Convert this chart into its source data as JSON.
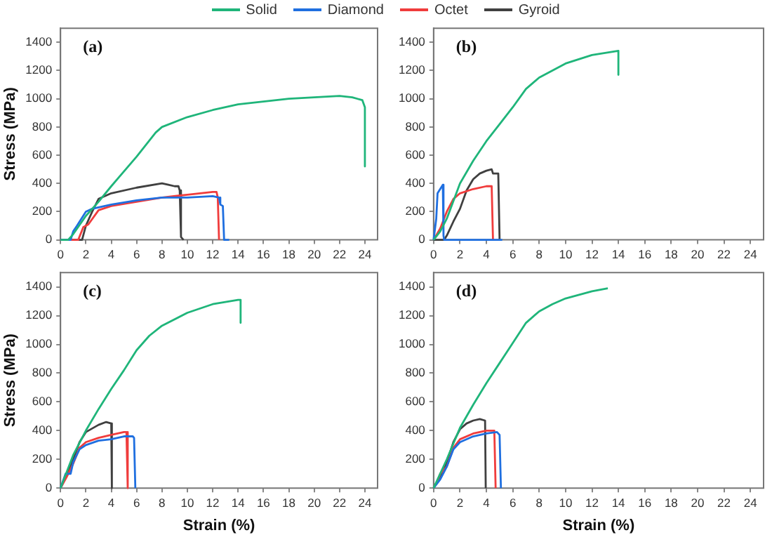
{
  "chart_data": [
    {
      "type": "line",
      "annotations": [
        "(a)"
      ],
      "ylabel": "Stress (MPa)",
      "legend": "top",
      "xlim": [
        0,
        25
      ],
      "ylim": [
        0,
        1500
      ],
      "xticks": [
        0,
        2,
        4,
        6,
        8,
        10,
        12,
        14,
        16,
        18,
        20,
        22,
        24
      ],
      "yticks": [
        0,
        200,
        400,
        600,
        800,
        1000,
        1200,
        1400
      ],
      "series": [
        {
          "name": "Solid",
          "color": "#1fb57a",
          "x": [
            0,
            0.6,
            1,
            2,
            3,
            4,
            6,
            7.5,
            8,
            10,
            12,
            14,
            16,
            18,
            20,
            22,
            23,
            23.8,
            24,
            24
          ],
          "values": [
            0,
            0,
            40,
            170,
            270,
            380,
            590,
            760,
            800,
            870,
            920,
            960,
            980,
            1000,
            1010,
            1020,
            1010,
            990,
            940,
            520
          ]
        },
        {
          "name": "Diamond",
          "color": "#1f6fe0",
          "x": [
            0,
            0.8,
            1,
            1.3,
            2,
            2.5,
            4,
            6,
            8,
            10,
            12,
            12.5,
            12.6,
            12.8,
            12.9,
            13.3
          ],
          "values": [
            0,
            0,
            60,
            100,
            200,
            220,
            250,
            280,
            300,
            300,
            310,
            300,
            250,
            240,
            0,
            0
          ]
        },
        {
          "name": "Octet",
          "color": "#f03c3c",
          "x": [
            0,
            1.4,
            1.8,
            2.2,
            3,
            4,
            6,
            8,
            10,
            12,
            12.3,
            12.4,
            12.5
          ],
          "values": [
            0,
            0,
            90,
            110,
            210,
            240,
            270,
            300,
            320,
            340,
            340,
            300,
            0
          ]
        },
        {
          "name": "Gyroid",
          "color": "#404040",
          "x": [
            0,
            1.7,
            2,
            2.5,
            3,
            4,
            6,
            8,
            8.5,
            9,
            9.3,
            9.4,
            9.5,
            9.7
          ],
          "values": [
            0,
            0,
            100,
            200,
            290,
            330,
            370,
            400,
            390,
            380,
            380,
            350,
            20,
            0
          ]
        }
      ]
    },
    {
      "type": "line",
      "annotations": [
        "(b)"
      ],
      "xlim": [
        0,
        25
      ],
      "ylim": [
        0,
        1500
      ],
      "xticks": [
        0,
        2,
        4,
        6,
        8,
        10,
        12,
        14,
        16,
        18,
        20,
        22,
        24
      ],
      "yticks": [
        0,
        200,
        400,
        600,
        800,
        1000,
        1200,
        1400
      ],
      "series": [
        {
          "color": "#1fb57a",
          "x": [
            0,
            0.5,
            1,
            2,
            3,
            4,
            5,
            6,
            7,
            8,
            10,
            12,
            14,
            14
          ],
          "values": [
            0,
            60,
            150,
            400,
            560,
            700,
            820,
            940,
            1070,
            1150,
            1250,
            1310,
            1340,
            1170
          ]
        },
        {
          "color": "#1f6fe0",
          "x": [
            0,
            0.2,
            0.3,
            0.5,
            0.7,
            0.75,
            0.8,
            5.2
          ],
          "values": [
            0,
            150,
            330,
            360,
            390,
            30,
            0,
            0
          ]
        },
        {
          "color": "#f03c3c",
          "x": [
            0,
            0.5,
            1,
            1.5,
            2,
            3,
            4,
            4.4,
            4.5
          ],
          "values": [
            0,
            80,
            200,
            290,
            330,
            360,
            380,
            380,
            0
          ]
        },
        {
          "color": "#404040",
          "x": [
            0,
            0.8,
            1,
            1.5,
            2,
            2.5,
            3,
            3.5,
            4,
            4.4,
            4.5,
            4.9,
            5
          ],
          "values": [
            0,
            0,
            30,
            130,
            220,
            350,
            430,
            470,
            490,
            500,
            470,
            470,
            0
          ]
        }
      ]
    },
    {
      "type": "line",
      "annotations": [
        "(c)"
      ],
      "xlabel": "Strain (%)",
      "ylabel": "Stress (MPa)",
      "xlim": [
        0,
        25
      ],
      "ylim": [
        0,
        1500
      ],
      "xticks": [
        0,
        2,
        4,
        6,
        8,
        10,
        12,
        14,
        16,
        18,
        20,
        22,
        24
      ],
      "yticks": [
        0,
        200,
        400,
        600,
        800,
        1000,
        1200,
        1400
      ],
      "series": [
        {
          "color": "#1fb57a",
          "x": [
            0,
            1,
            2,
            3,
            4,
            5,
            6,
            7,
            8,
            10,
            12,
            14,
            14.2,
            14.2
          ],
          "values": [
            0,
            230,
            400,
            550,
            690,
            820,
            960,
            1060,
            1130,
            1220,
            1280,
            1310,
            1310,
            1150
          ]
        },
        {
          "color": "#1f6fe0",
          "x": [
            0,
            0.4,
            0.8,
            1,
            1.5,
            2,
            3,
            4,
            5,
            5.7,
            5.8,
            5.9
          ],
          "values": [
            0,
            100,
            100,
            180,
            270,
            300,
            330,
            340,
            360,
            360,
            350,
            0
          ]
        },
        {
          "color": "#f03c3c",
          "x": [
            0,
            0.5,
            1,
            1.5,
            2,
            3,
            4,
            5,
            5.2,
            5.3
          ],
          "values": [
            0,
            80,
            170,
            280,
            320,
            350,
            370,
            390,
            390,
            0
          ]
        },
        {
          "color": "#404040",
          "x": [
            0,
            0.5,
            1,
            1.5,
            2,
            3,
            3.6,
            4,
            4.05
          ],
          "values": [
            0,
            90,
            200,
            320,
            390,
            440,
            460,
            450,
            0
          ]
        }
      ]
    },
    {
      "type": "line",
      "annotations": [
        "(d)"
      ],
      "xlabel": "Strain (%)",
      "xlim": [
        0,
        25
      ],
      "ylim": [
        0,
        1500
      ],
      "xticks": [
        0,
        2,
        4,
        6,
        8,
        10,
        12,
        14,
        16,
        18,
        20,
        22,
        24
      ],
      "yticks": [
        0,
        200,
        400,
        600,
        800,
        1000,
        1200,
        1400
      ],
      "series": [
        {
          "color": "#1fb57a",
          "x": [
            0,
            1,
            2,
            3,
            4,
            5,
            6,
            7,
            8,
            9,
            10,
            12,
            13.2
          ],
          "values": [
            0,
            200,
            420,
            580,
            730,
            870,
            1010,
            1150,
            1230,
            1280,
            1320,
            1370,
            1390
          ]
        },
        {
          "color": "#1f6fe0",
          "x": [
            0,
            0.5,
            1,
            1.5,
            2,
            3,
            4,
            4.8,
            5,
            5.1
          ],
          "values": [
            0,
            60,
            150,
            270,
            320,
            360,
            380,
            390,
            370,
            0
          ]
        },
        {
          "color": "#f03c3c",
          "x": [
            0,
            0.3,
            0.5,
            1,
            1.5,
            2,
            3,
            4,
            4.6,
            4.7
          ],
          "values": [
            0,
            50,
            100,
            150,
            280,
            340,
            380,
            400,
            400,
            0
          ]
        },
        {
          "color": "#404040",
          "x": [
            0,
            0.5,
            1,
            1.5,
            2,
            2.5,
            3,
            3.5,
            3.9,
            3.95
          ],
          "values": [
            0,
            80,
            180,
            320,
            410,
            450,
            470,
            480,
            470,
            0
          ]
        }
      ]
    }
  ]
}
